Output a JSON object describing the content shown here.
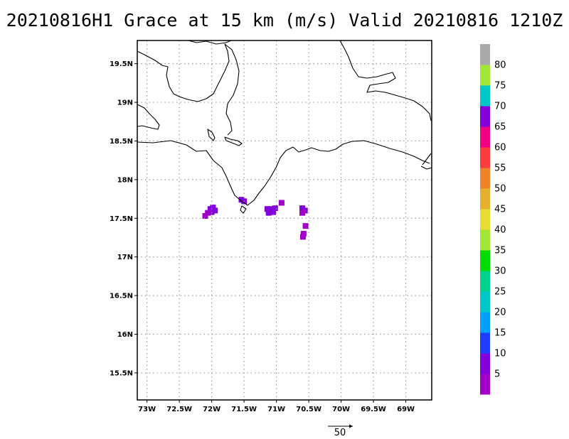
{
  "title": "20210816H1 Grace at 15 km (m/s) Valid 20210816 1210Z",
  "map": {
    "lon_range": [
      -73.15,
      -68.6
    ],
    "lat_range": [
      15.15,
      19.8
    ],
    "lon_ticks": [
      {
        "value": -73.0,
        "label": "73W"
      },
      {
        "value": -72.5,
        "label": "72.5W"
      },
      {
        "value": -72.0,
        "label": "72W"
      },
      {
        "value": -71.5,
        "label": "71.5W"
      },
      {
        "value": -71.0,
        "label": "71W"
      },
      {
        "value": -70.5,
        "label": "70.5W"
      },
      {
        "value": -70.0,
        "label": "70W"
      },
      {
        "value": -69.5,
        "label": "69.5W"
      },
      {
        "value": -69.0,
        "label": "69W"
      }
    ],
    "lat_ticks": [
      {
        "value": 19.5,
        "label": "19.5N"
      },
      {
        "value": 19.0,
        "label": "19N"
      },
      {
        "value": 18.5,
        "label": "18.5N"
      },
      {
        "value": 18.0,
        "label": "18N"
      },
      {
        "value": 17.5,
        "label": "17.5N"
      },
      {
        "value": 17.0,
        "label": "17N"
      },
      {
        "value": 16.5,
        "label": "16.5N"
      },
      {
        "value": 16.0,
        "label": "16N"
      },
      {
        "value": 15.5,
        "label": "15.5N"
      }
    ],
    "wind_cells": [
      {
        "lon": -72.02,
        "lat": 17.62,
        "speed": 7
      },
      {
        "lon": -71.98,
        "lat": 17.64,
        "speed": 8
      },
      {
        "lon": -72.0,
        "lat": 17.58,
        "speed": 6
      },
      {
        "lon": -72.06,
        "lat": 17.57,
        "speed": 4
      },
      {
        "lon": -72.1,
        "lat": 17.53,
        "speed": 3
      },
      {
        "lon": -71.95,
        "lat": 17.6,
        "speed": 7
      },
      {
        "lon": -71.54,
        "lat": 17.74,
        "speed": 6
      },
      {
        "lon": -71.5,
        "lat": 17.72,
        "speed": 5
      },
      {
        "lon": -71.14,
        "lat": 17.62,
        "speed": 7
      },
      {
        "lon": -71.08,
        "lat": 17.62,
        "speed": 7
      },
      {
        "lon": -71.02,
        "lat": 17.63,
        "speed": 6
      },
      {
        "lon": -71.12,
        "lat": 17.57,
        "speed": 5
      },
      {
        "lon": -71.05,
        "lat": 17.58,
        "speed": 5
      },
      {
        "lon": -70.92,
        "lat": 17.7,
        "speed": 4
      },
      {
        "lon": -70.6,
        "lat": 17.63,
        "speed": 7
      },
      {
        "lon": -70.56,
        "lat": 17.6,
        "speed": 6
      },
      {
        "lon": -70.6,
        "lat": 17.57,
        "speed": 4
      },
      {
        "lon": -70.55,
        "lat": 17.4,
        "speed": 4
      },
      {
        "lon": -70.58,
        "lat": 17.3,
        "speed": 3
      },
      {
        "lon": -70.59,
        "lat": 17.26,
        "speed": 3
      }
    ]
  },
  "colorbar": {
    "colors": [
      "#a000c8",
      "#8200dc",
      "#1e3cff",
      "#00a0ff",
      "#00c8c8",
      "#00d28c",
      "#00dc00",
      "#a0e632",
      "#e6dc32",
      "#e6af2d",
      "#f08228",
      "#fa3c3c",
      "#f00082",
      "#8200dc",
      "#00c8c8",
      "#a0e632",
      "#aaaaaa"
    ],
    "labels": [
      "5",
      "10",
      "15",
      "20",
      "25",
      "30",
      "35",
      "40",
      "45",
      "50",
      "55",
      "60",
      "65",
      "70",
      "75",
      "80"
    ]
  },
  "reference_vector": {
    "label": "50",
    "value": 50
  }
}
